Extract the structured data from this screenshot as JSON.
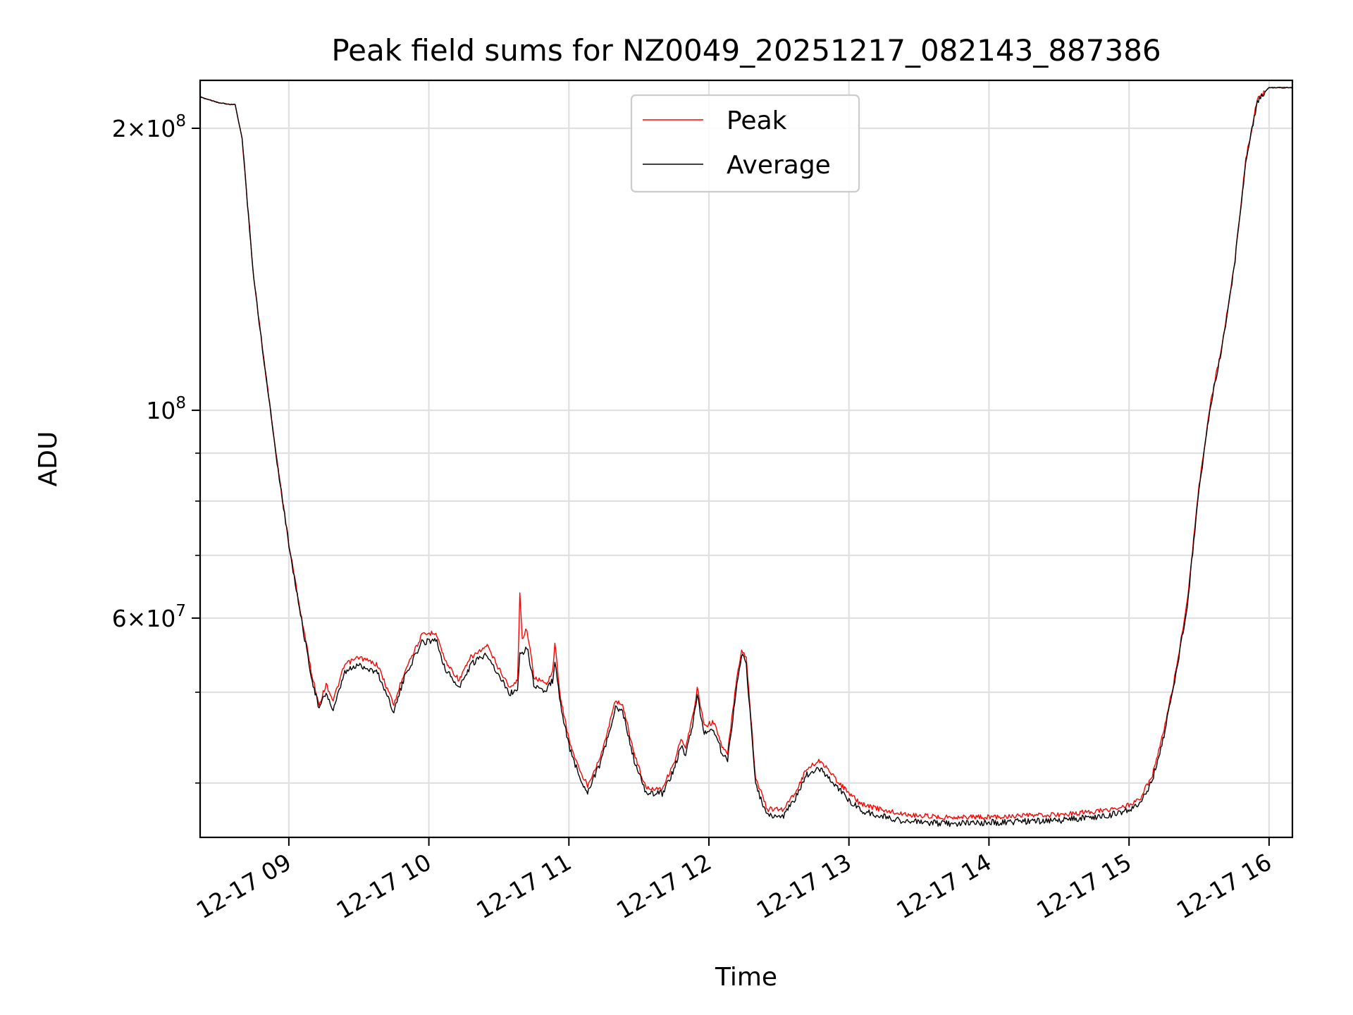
{
  "chart_data": {
    "type": "line",
    "title": "Peak field sums for NZ0049_20251217_082143_887386",
    "xlabel": "Time",
    "ylabel": "ADU",
    "y_scale": "log",
    "grid": true,
    "legend_position": "top-center",
    "xlim": [
      "2025-12-17 08:22",
      "2025-12-17 16:10"
    ],
    "ylim": [
      35000000,
      225000000
    ],
    "x_ticks": [
      "12-17 09",
      "12-17 10",
      "12-17 11",
      "12-17 12",
      "12-17 13",
      "12-17 14",
      "12-17 15",
      "12-17 16"
    ],
    "x_ticks_time": [
      "2025-12-17 09:00",
      "2025-12-17 10:00",
      "2025-12-17 11:00",
      "2025-12-17 12:00",
      "2025-12-17 13:00",
      "2025-12-17 14:00",
      "2025-12-17 15:00",
      "2025-12-17 16:00"
    ],
    "y_major_ticks": [
      {
        "value": 200000000,
        "mantissa": "2",
        "exp": "8"
      },
      {
        "value": 100000000,
        "mantissa": "",
        "exp": "8"
      },
      {
        "value": 60000000,
        "mantissa": "6",
        "exp": "7"
      }
    ],
    "y_minor_ticks": [
      40000000,
      50000000,
      70000000,
      80000000,
      90000000
    ],
    "series": [
      {
        "name": "Peak",
        "color": "#ff0000",
        "points": [
          [
            "2025-12-17 08:22",
            216000000
          ],
          [
            "2025-12-17 08:30",
            213000000
          ],
          [
            "2025-12-17 08:35",
            212000000
          ],
          [
            "2025-12-17 08:37",
            212000000
          ],
          [
            "2025-12-17 08:40",
            195000000
          ],
          [
            "2025-12-17 08:45",
            138000000
          ],
          [
            "2025-12-17 08:50",
            110000000
          ],
          [
            "2025-12-17 08:55",
            88000000
          ],
          [
            "2025-12-17 09:00",
            72000000
          ],
          [
            "2025-12-17 09:05",
            61000000
          ],
          [
            "2025-12-17 09:10",
            52000000
          ],
          [
            "2025-12-17 09:13",
            48500000
          ],
          [
            "2025-12-17 09:16",
            51000000
          ],
          [
            "2025-12-17 09:19",
            49000000
          ],
          [
            "2025-12-17 09:24",
            53500000
          ],
          [
            "2025-12-17 09:30",
            54500000
          ],
          [
            "2025-12-17 09:38",
            53500000
          ],
          [
            "2025-12-17 09:45",
            48500000
          ],
          [
            "2025-12-17 09:50",
            53000000
          ],
          [
            "2025-12-17 09:57",
            57500000
          ],
          [
            "2025-12-17 10:03",
            58000000
          ],
          [
            "2025-12-17 10:07",
            54000000
          ],
          [
            "2025-12-17 10:13",
            51500000
          ],
          [
            "2025-12-17 10:18",
            54500000
          ],
          [
            "2025-12-17 10:25",
            56000000
          ],
          [
            "2025-12-17 10:30",
            53000000
          ],
          [
            "2025-12-17 10:35",
            50500000
          ],
          [
            "2025-12-17 10:38",
            51500000
          ],
          [
            "2025-12-17 10:39",
            64000000
          ],
          [
            "2025-12-17 10:40",
            57000000
          ],
          [
            "2025-12-17 10:42",
            58500000
          ],
          [
            "2025-12-17 10:45",
            52000000
          ],
          [
            "2025-12-17 10:50",
            51000000
          ],
          [
            "2025-12-17 10:53",
            52500000
          ],
          [
            "2025-12-17 10:54",
            56500000
          ],
          [
            "2025-12-17 10:56",
            50000000
          ],
          [
            "2025-12-17 11:00",
            44500000
          ],
          [
            "2025-12-17 11:05",
            41000000
          ],
          [
            "2025-12-17 11:08",
            39800000
          ],
          [
            "2025-12-17 11:14",
            43000000
          ],
          [
            "2025-12-17 11:20",
            49000000
          ],
          [
            "2025-12-17 11:23",
            48500000
          ],
          [
            "2025-12-17 11:28",
            43000000
          ],
          [
            "2025-12-17 11:33",
            39500000
          ],
          [
            "2025-12-17 11:40",
            39500000
          ],
          [
            "2025-12-17 11:45",
            42000000
          ],
          [
            "2025-12-17 11:48",
            44500000
          ],
          [
            "2025-12-17 11:50",
            43500000
          ],
          [
            "2025-12-17 11:53",
            47000000
          ],
          [
            "2025-12-17 11:55",
            50500000
          ],
          [
            "2025-12-17 11:58",
            46000000
          ],
          [
            "2025-12-17 12:02",
            46500000
          ],
          [
            "2025-12-17 12:06",
            43500000
          ],
          [
            "2025-12-17 12:08",
            43000000
          ],
          [
            "2025-12-17 12:12",
            52000000
          ],
          [
            "2025-12-17 12:14",
            55500000
          ],
          [
            "2025-12-17 12:16",
            54500000
          ],
          [
            "2025-12-17 12:18",
            47000000
          ],
          [
            "2025-12-17 12:20",
            40500000
          ],
          [
            "2025-12-17 12:25",
            37500000
          ],
          [
            "2025-12-17 12:32",
            37500000
          ],
          [
            "2025-12-17 12:38",
            39500000
          ],
          [
            "2025-12-17 12:42",
            41500000
          ],
          [
            "2025-12-17 12:48",
            42300000
          ],
          [
            "2025-12-17 12:52",
            41000000
          ],
          [
            "2025-12-17 13:00",
            39000000
          ],
          [
            "2025-12-17 13:05",
            38000000
          ],
          [
            "2025-12-17 13:15",
            37400000
          ],
          [
            "2025-12-17 13:25",
            37000000
          ],
          [
            "2025-12-17 13:40",
            36800000
          ],
          [
            "2025-12-17 14:00",
            36800000
          ],
          [
            "2025-12-17 14:30",
            37000000
          ],
          [
            "2025-12-17 14:50",
            37400000
          ],
          [
            "2025-12-17 15:00",
            37900000
          ],
          [
            "2025-12-17 15:05",
            38600000
          ],
          [
            "2025-12-17 15:10",
            40800000
          ],
          [
            "2025-12-17 15:15",
            45500000
          ],
          [
            "2025-12-17 15:20",
            52500000
          ],
          [
            "2025-12-17 15:25",
            62500000
          ],
          [
            "2025-12-17 15:30",
            83000000
          ],
          [
            "2025-12-17 15:35",
            102000000
          ],
          [
            "2025-12-17 15:40",
            118000000
          ],
          [
            "2025-12-17 15:45",
            142000000
          ],
          [
            "2025-12-17 15:50",
            185000000
          ],
          [
            "2025-12-17 15:55",
            215000000
          ],
          [
            "2025-12-17 16:00",
            221000000
          ],
          [
            "2025-12-17 16:10",
            221000000
          ]
        ]
      },
      {
        "name": "Average",
        "color": "#000000",
        "points": [
          [
            "2025-12-17 08:22",
            216000000
          ],
          [
            "2025-12-17 08:30",
            213000000
          ],
          [
            "2025-12-17 08:35",
            212000000
          ],
          [
            "2025-12-17 08:37",
            212000000
          ],
          [
            "2025-12-17 08:40",
            195000000
          ],
          [
            "2025-12-17 08:45",
            138000000
          ],
          [
            "2025-12-17 08:50",
            110000000
          ],
          [
            "2025-12-17 08:55",
            88000000
          ],
          [
            "2025-12-17 09:00",
            72000000
          ],
          [
            "2025-12-17 09:05",
            60500000
          ],
          [
            "2025-12-17 09:10",
            51500000
          ],
          [
            "2025-12-17 09:13",
            48000000
          ],
          [
            "2025-12-17 09:16",
            50000000
          ],
          [
            "2025-12-17 09:19",
            47700000
          ],
          [
            "2025-12-17 09:24",
            52500000
          ],
          [
            "2025-12-17 09:30",
            53500000
          ],
          [
            "2025-12-17 09:38",
            52500000
          ],
          [
            "2025-12-17 09:45",
            47700000
          ],
          [
            "2025-12-17 09:50",
            52200000
          ],
          [
            "2025-12-17 09:57",
            56500000
          ],
          [
            "2025-12-17 10:03",
            57000000
          ],
          [
            "2025-12-17 10:07",
            53000000
          ],
          [
            "2025-12-17 10:13",
            50500000
          ],
          [
            "2025-12-17 10:18",
            53500000
          ],
          [
            "2025-12-17 10:25",
            55000000
          ],
          [
            "2025-12-17 10:30",
            52000000
          ],
          [
            "2025-12-17 10:35",
            49800000
          ],
          [
            "2025-12-17 10:38",
            50500000
          ],
          [
            "2025-12-17 10:39",
            55500000
          ],
          [
            "2025-12-17 10:40",
            55000000
          ],
          [
            "2025-12-17 10:42",
            56000000
          ],
          [
            "2025-12-17 10:45",
            51000000
          ],
          [
            "2025-12-17 10:50",
            50000000
          ],
          [
            "2025-12-17 10:53",
            51500000
          ],
          [
            "2025-12-17 10:54",
            54000000
          ],
          [
            "2025-12-17 10:56",
            49200000
          ],
          [
            "2025-12-17 11:00",
            43800000
          ],
          [
            "2025-12-17 11:05",
            40300000
          ],
          [
            "2025-12-17 11:08",
            39200000
          ],
          [
            "2025-12-17 11:14",
            42300000
          ],
          [
            "2025-12-17 11:20",
            48000000
          ],
          [
            "2025-12-17 11:23",
            47700000
          ],
          [
            "2025-12-17 11:28",
            42300000
          ],
          [
            "2025-12-17 11:33",
            39000000
          ],
          [
            "2025-12-17 11:40",
            39000000
          ],
          [
            "2025-12-17 11:45",
            41300000
          ],
          [
            "2025-12-17 11:48",
            43800000
          ],
          [
            "2025-12-17 11:50",
            42800000
          ],
          [
            "2025-12-17 11:53",
            46200000
          ],
          [
            "2025-12-17 11:55",
            49500000
          ],
          [
            "2025-12-17 11:58",
            45200000
          ],
          [
            "2025-12-17 12:02",
            45700000
          ],
          [
            "2025-12-17 12:06",
            42800000
          ],
          [
            "2025-12-17 12:08",
            42300000
          ],
          [
            "2025-12-17 12:12",
            51000000
          ],
          [
            "2025-12-17 12:14",
            55000000
          ],
          [
            "2025-12-17 12:16",
            53500000
          ],
          [
            "2025-12-17 12:18",
            46200000
          ],
          [
            "2025-12-17 12:20",
            39800000
          ],
          [
            "2025-12-17 12:25",
            36900000
          ],
          [
            "2025-12-17 12:32",
            36900000
          ],
          [
            "2025-12-17 12:38",
            38900000
          ],
          [
            "2025-12-17 12:42",
            40800000
          ],
          [
            "2025-12-17 12:48",
            41500000
          ],
          [
            "2025-12-17 12:52",
            40300000
          ],
          [
            "2025-12-17 13:00",
            38400000
          ],
          [
            "2025-12-17 13:05",
            37400000
          ],
          [
            "2025-12-17 13:15",
            36800000
          ],
          [
            "2025-12-17 13:25",
            36400000
          ],
          [
            "2025-12-17 13:40",
            36200000
          ],
          [
            "2025-12-17 14:00",
            36300000
          ],
          [
            "2025-12-17 14:30",
            36500000
          ],
          [
            "2025-12-17 14:50",
            36900000
          ],
          [
            "2025-12-17 15:00",
            37400000
          ],
          [
            "2025-12-17 15:05",
            38100000
          ],
          [
            "2025-12-17 15:10",
            40300000
          ],
          [
            "2025-12-17 15:15",
            45000000
          ],
          [
            "2025-12-17 15:20",
            52000000
          ],
          [
            "2025-12-17 15:25",
            62000000
          ],
          [
            "2025-12-17 15:30",
            82500000
          ],
          [
            "2025-12-17 15:35",
            101500000
          ],
          [
            "2025-12-17 15:40",
            117500000
          ],
          [
            "2025-12-17 15:45",
            141500000
          ],
          [
            "2025-12-17 15:50",
            184000000
          ],
          [
            "2025-12-17 15:55",
            214000000
          ],
          [
            "2025-12-17 16:00",
            221000000
          ],
          [
            "2025-12-17 16:10",
            221000000
          ]
        ]
      }
    ]
  }
}
